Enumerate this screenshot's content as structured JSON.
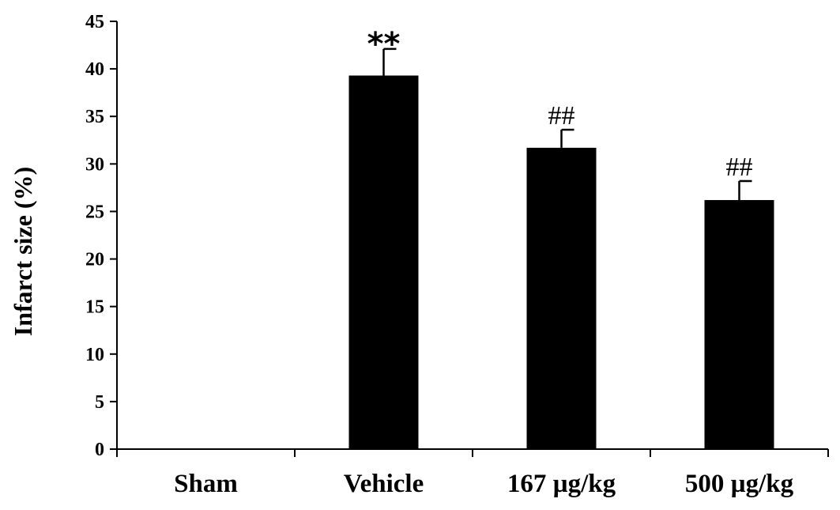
{
  "chart_data": {
    "type": "bar",
    "title": "",
    "xlabel": "",
    "ylabel": "Infarct size (%)",
    "ylim": [
      0,
      45
    ],
    "yticks": [
      0,
      5,
      10,
      15,
      20,
      25,
      30,
      35,
      40,
      45
    ],
    "grid": false,
    "legend": "none",
    "bar_color": "#000000",
    "categories": [
      "Sham",
      "Vehicle",
      "167 µg/kg",
      "500 µg/kg"
    ],
    "values": [
      0,
      39.3,
      31.7,
      26.2
    ],
    "errors": [
      0,
      2.8,
      1.9,
      2.0
    ],
    "annotations": [
      "",
      "**",
      "##",
      "##"
    ]
  }
}
